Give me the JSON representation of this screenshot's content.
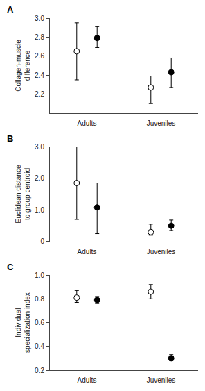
{
  "chart_data": [
    {
      "type": "scatter",
      "title": "A",
      "y_label": "Collagen-muscle\ndifference",
      "categories": [
        "Adults",
        "Juveniles"
      ],
      "ylim": [
        2.0,
        3.0
      ],
      "yticks": [
        2.2,
        2.4,
        2.6,
        2.8,
        {
          "value": 3.0,
          "label": "3.0"
        }
      ],
      "grid": false,
      "marker": "circle",
      "series": [
        {
          "color": "white",
          "values": [
            2.65,
            2.27
          ],
          "yerr_lo": [
            0.3,
            0.17
          ],
          "yerr_hi": [
            0.3,
            0.12
          ]
        },
        {
          "color": "black",
          "values": [
            2.79,
            2.43
          ],
          "yerr_lo": [
            0.1,
            0.16
          ],
          "yerr_hi": [
            0.12,
            0.15
          ]
        }
      ]
    },
    {
      "type": "scatter",
      "title": "B",
      "y_label": "Euclidean distance\nto group centroid",
      "categories": [
        "Adults",
        "Juveniles"
      ],
      "ylim": [
        0.0,
        3.0
      ],
      "yticks": [
        0,
        {
          "value": 1.0,
          "label": "1.0"
        },
        {
          "value": 2.0,
          "label": "2.0"
        },
        {
          "value": 3.0,
          "label": "3.0"
        }
      ],
      "grid": false,
      "marker": "circle",
      "series": [
        {
          "color": "white",
          "values": [
            1.85,
            0.3
          ],
          "yerr_lo": [
            1.15,
            0.1
          ],
          "yerr_hi": [
            1.15,
            0.25
          ]
        },
        {
          "color": "black",
          "values": [
            1.08,
            0.5
          ],
          "yerr_lo": [
            0.83,
            0.15
          ],
          "yerr_hi": [
            0.77,
            0.18
          ]
        }
      ]
    },
    {
      "type": "scatter",
      "title": "C",
      "y_label": "Individual\nspecialization index",
      "categories": [
        "Adults",
        "Juveniles"
      ],
      "ylim": [
        0.2,
        1.0
      ],
      "yticks": [
        0.2,
        0.4,
        0.6,
        0.8,
        {
          "value": 1.0,
          "label": "1.0"
        }
      ],
      "grid": false,
      "marker": "circle",
      "series": [
        {
          "color": "white",
          "values": [
            0.81,
            0.86
          ],
          "yerr_lo": [
            0.04,
            0.06
          ],
          "yerr_hi": [
            0.06,
            0.06
          ]
        },
        {
          "color": "black",
          "values": [
            0.79,
            0.3
          ],
          "yerr_lo": [
            0.03,
            0.02
          ],
          "yerr_hi": [
            0.03,
            0.03
          ]
        }
      ]
    }
  ]
}
